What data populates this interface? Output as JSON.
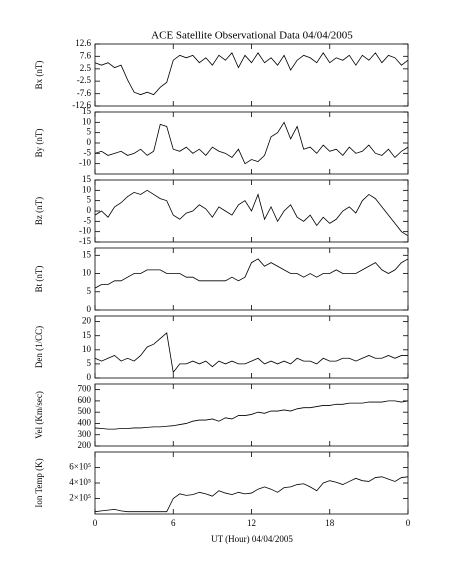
{
  "chart_data": [
    {
      "type": "line",
      "title": "ACE Satellite Observational Data  04/04/2005",
      "ylabel": "Bx (nT)",
      "color": "#000000",
      "x": [
        0,
        0.5,
        1,
        1.5,
        2,
        2.5,
        3,
        3.5,
        4,
        4.5,
        5,
        5.5,
        6,
        6.5,
        7,
        7.5,
        8,
        8.5,
        9,
        9.5,
        10,
        10.5,
        11,
        11.5,
        12,
        12.5,
        13,
        13.5,
        14,
        14.5,
        15,
        15.5,
        16,
        16.5,
        17,
        17.5,
        18,
        18.5,
        19,
        19.5,
        20,
        20.5,
        21,
        21.5,
        22,
        22.5,
        23,
        23.5,
        24
      ],
      "values": [
        5,
        4,
        5,
        3,
        4,
        -2,
        -7,
        -8,
        -7,
        -8,
        -5,
        -3,
        6,
        8,
        7,
        8,
        5,
        7,
        4,
        8,
        6,
        9,
        3,
        8,
        5,
        9,
        5,
        7,
        4,
        8,
        2,
        6,
        8,
        7,
        5,
        9,
        5,
        7,
        6,
        8,
        4,
        8,
        6,
        9,
        5,
        8,
        7,
        4,
        6
      ],
      "xlim": [
        0,
        24
      ],
      "ylim": [
        -12.6,
        12.6
      ],
      "yticks": [
        -12.6,
        -7.6,
        -2.5,
        2.5,
        7.6,
        12.6
      ]
    },
    {
      "type": "line",
      "ylabel": "By (nT)",
      "color": "#000000",
      "x": [
        0,
        0.5,
        1,
        1.5,
        2,
        2.5,
        3,
        3.5,
        4,
        4.5,
        5,
        5.5,
        6,
        6.5,
        7,
        7.5,
        8,
        8.5,
        9,
        9.5,
        10,
        10.5,
        11,
        11.5,
        12,
        12.5,
        13,
        13.5,
        14,
        14.5,
        15,
        15.5,
        16,
        16.5,
        17,
        17.5,
        18,
        18.5,
        19,
        19.5,
        20,
        20.5,
        21,
        21.5,
        22,
        22.5,
        23,
        23.5,
        24
      ],
      "values": [
        -5,
        -4,
        -6,
        -5,
        -4,
        -6,
        -5,
        -3,
        -6,
        -4,
        9,
        8,
        -3,
        -4,
        -2,
        -5,
        -3,
        -6,
        -2,
        -4,
        -5,
        -7,
        -3,
        -10,
        -8,
        -9,
        -6,
        3,
        5,
        10,
        2,
        8,
        -3,
        -2,
        -5,
        -1,
        -4,
        -3,
        -6,
        -2,
        -5,
        -4,
        -1,
        -5,
        -6,
        -3,
        -7,
        -4,
        -2
      ],
      "xlim": [
        0,
        24
      ],
      "ylim": [
        -15,
        15
      ],
      "yticks": [
        -10,
        -5,
        0,
        5,
        10,
        15
      ]
    },
    {
      "type": "line",
      "ylabel": "Bz (nT)",
      "color": "#000000",
      "x": [
        0,
        0.5,
        1,
        1.5,
        2,
        2.5,
        3,
        3.5,
        4,
        4.5,
        5,
        5.5,
        6,
        6.5,
        7,
        7.5,
        8,
        8.5,
        9,
        9.5,
        10,
        10.5,
        11,
        11.5,
        12,
        12.5,
        13,
        13.5,
        14,
        14.5,
        15,
        15.5,
        16,
        16.5,
        17,
        17.5,
        18,
        18.5,
        19,
        19.5,
        20,
        20.5,
        21,
        21.5,
        22,
        22.5,
        23,
        23.5,
        24
      ],
      "values": [
        -2,
        0,
        -3,
        2,
        4,
        7,
        9,
        8,
        10,
        8,
        6,
        5,
        -2,
        -4,
        -1,
        0,
        3,
        1,
        -3,
        2,
        0,
        -2,
        3,
        5,
        0,
        8,
        -4,
        2,
        -5,
        0,
        3,
        -3,
        -5,
        -2,
        -7,
        -3,
        -6,
        -4,
        0,
        2,
        -1,
        5,
        8,
        6,
        2,
        -2,
        -6,
        -10,
        -12
      ],
      "xlim": [
        0,
        24
      ],
      "ylim": [
        -15,
        15
      ],
      "yticks": [
        -15,
        -10,
        -5,
        0,
        5,
        10,
        15
      ]
    },
    {
      "type": "line",
      "ylabel": "Bt (nT)",
      "color": "#000000",
      "x": [
        0,
        0.5,
        1,
        1.5,
        2,
        2.5,
        3,
        3.5,
        4,
        4.5,
        5,
        5.5,
        6,
        6.5,
        7,
        7.5,
        8,
        8.5,
        9,
        9.5,
        10,
        10.5,
        11,
        11.5,
        12,
        12.5,
        13,
        13.5,
        14,
        14.5,
        15,
        15.5,
        16,
        16.5,
        17,
        17.5,
        18,
        18.5,
        19,
        19.5,
        20,
        20.5,
        21,
        21.5,
        22,
        22.5,
        23,
        23.5,
        24
      ],
      "values": [
        6,
        7,
        7,
        8,
        8,
        9,
        10,
        10,
        11,
        11,
        11,
        10,
        10,
        10,
        9,
        9,
        8,
        8,
        8,
        8,
        8,
        9,
        8,
        9,
        13,
        14,
        12,
        13,
        12,
        11,
        10,
        10,
        9,
        10,
        9,
        10,
        10,
        11,
        10,
        10,
        10,
        11,
        12,
        13,
        11,
        10,
        11,
        13,
        14
      ],
      "xlim": [
        0,
        24
      ],
      "ylim": [
        0,
        17
      ],
      "yticks": [
        0,
        5,
        10,
        15
      ]
    },
    {
      "type": "line",
      "ylabel": "Den (1/CC)",
      "color": "#000000",
      "x": [
        0,
        0.5,
        1,
        1.5,
        2,
        2.5,
        3,
        3.5,
        4,
        4.5,
        5,
        5.5,
        6,
        6.5,
        7,
        7.5,
        8,
        8.5,
        9,
        9.5,
        10,
        10.5,
        11,
        11.5,
        12,
        12.5,
        13,
        13.5,
        14,
        14.5,
        15,
        15.5,
        16,
        16.5,
        17,
        17.5,
        18,
        18.5,
        19,
        19.5,
        20,
        20.5,
        21,
        21.5,
        22,
        22.5,
        23,
        23.5,
        24
      ],
      "values": [
        7,
        6,
        7,
        8,
        6,
        7,
        6,
        8,
        11,
        12,
        14,
        16,
        2,
        5,
        5,
        6,
        5,
        6,
        4,
        6,
        5,
        6,
        5,
        5,
        6,
        7,
        5,
        6,
        5,
        6,
        5,
        7,
        6,
        6,
        5,
        7,
        6,
        6,
        7,
        7,
        6,
        7,
        8,
        7,
        7,
        8,
        7,
        8,
        8
      ],
      "xlim": [
        0,
        24
      ],
      "ylim": [
        0,
        22
      ],
      "yticks": [
        0,
        5,
        10,
        15,
        20
      ]
    },
    {
      "type": "line",
      "ylabel": "Vel (Km/sec)",
      "color": "#000000",
      "x": [
        0,
        0.5,
        1,
        1.5,
        2,
        2.5,
        3,
        3.5,
        4,
        4.5,
        5,
        5.5,
        6,
        6.5,
        7,
        7.5,
        8,
        8.5,
        9,
        9.5,
        10,
        10.5,
        11,
        11.5,
        12,
        12.5,
        13,
        13.5,
        14,
        14.5,
        15,
        15.5,
        16,
        16.5,
        17,
        17.5,
        18,
        18.5,
        19,
        19.5,
        20,
        20.5,
        21,
        21.5,
        22,
        22.5,
        23,
        23.5,
        24
      ],
      "values": [
        360,
        355,
        350,
        350,
        355,
        355,
        360,
        360,
        365,
        370,
        370,
        375,
        380,
        390,
        400,
        420,
        430,
        430,
        440,
        420,
        450,
        440,
        470,
        470,
        480,
        500,
        490,
        510,
        510,
        520,
        510,
        530,
        540,
        540,
        550,
        560,
        560,
        570,
        570,
        580,
        580,
        580,
        590,
        590,
        590,
        600,
        600,
        590,
        600
      ],
      "xlim": [
        0,
        24
      ],
      "ylim": [
        200,
        750
      ],
      "yticks": [
        200,
        300,
        400,
        500,
        600,
        700
      ]
    },
    {
      "type": "line",
      "ylabel": "Ion Temp (K)",
      "xlabel": "UT (Hour)  04/04/2005",
      "color": "#000000",
      "x": [
        0,
        0.5,
        1,
        1.5,
        2,
        2.5,
        3,
        3.5,
        4,
        4.5,
        5,
        5.5,
        6,
        6.5,
        7,
        7.5,
        8,
        8.5,
        9,
        9.5,
        10,
        10.5,
        11,
        11.5,
        12,
        12.5,
        13,
        13.5,
        14,
        14.5,
        15,
        15.5,
        16,
        16.5,
        17,
        17.5,
        18,
        18.5,
        19,
        19.5,
        20,
        20.5,
        21,
        21.5,
        22,
        22.5,
        23,
        23.5,
        24
      ],
      "values": [
        30000,
        40000,
        50000,
        60000,
        40000,
        30000,
        30000,
        30000,
        30000,
        30000,
        30000,
        30000,
        200000,
        260000,
        240000,
        250000,
        280000,
        260000,
        230000,
        300000,
        270000,
        250000,
        280000,
        260000,
        270000,
        320000,
        350000,
        320000,
        280000,
        340000,
        350000,
        380000,
        390000,
        350000,
        300000,
        400000,
        430000,
        410000,
        380000,
        420000,
        460000,
        430000,
        420000,
        470000,
        480000,
        450000,
        420000,
        470000,
        480000
      ],
      "xlim": [
        0,
        24
      ],
      "ylim": [
        0,
        800000
      ],
      "yticks": [
        {
          "value": 200000,
          "label": "2×10⁵"
        },
        {
          "value": 400000,
          "label": "4×10⁵"
        },
        {
          "value": 600000,
          "label": "6×10⁵"
        }
      ],
      "xticks": [
        0,
        6,
        12,
        18,
        {
          "value": 24,
          "label": "0"
        }
      ]
    }
  ]
}
